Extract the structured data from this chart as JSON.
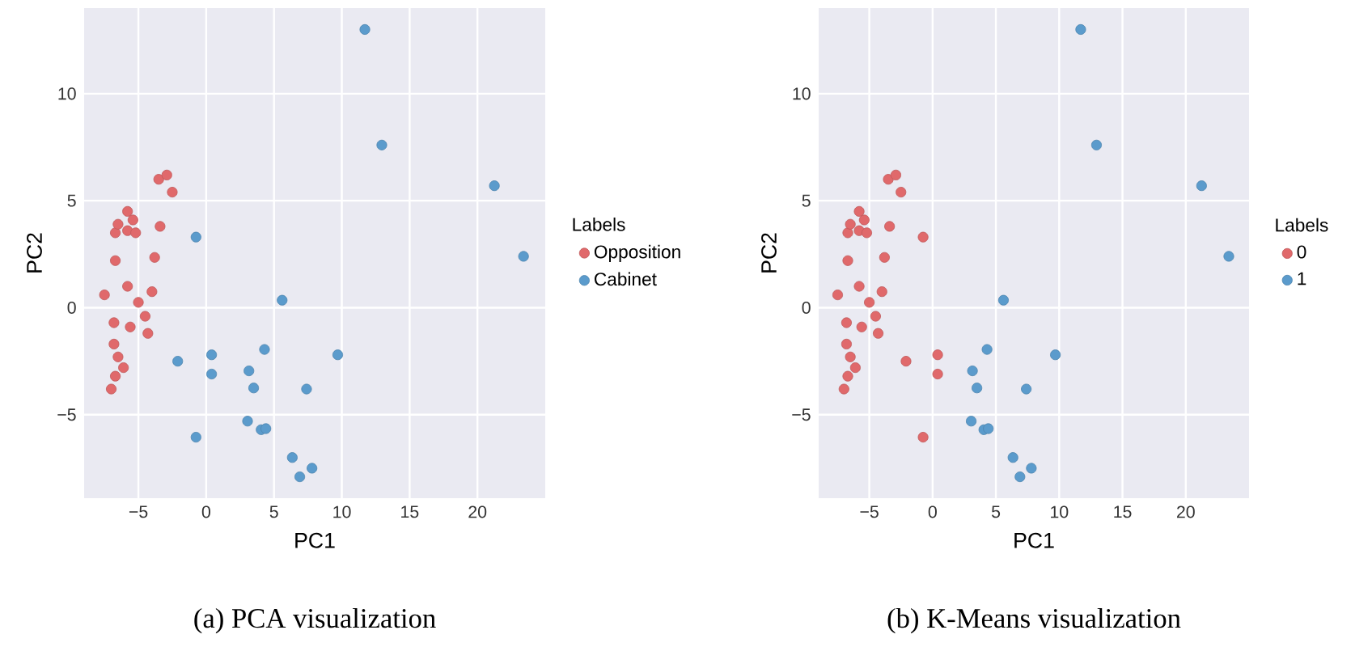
{
  "chart_data": [
    {
      "type": "scatter",
      "title": "(a) PCA visualization",
      "xlabel": "PC1",
      "ylabel": "PC2",
      "legend_title": "Labels",
      "legend": "right",
      "grid": true,
      "marker": "circle",
      "xlim": [
        -9,
        25
      ],
      "ylim": [
        -8.9,
        14
      ],
      "xticks": [
        {
          "value": -5,
          "label": "−5"
        },
        0,
        5,
        10,
        15,
        20
      ],
      "yticks": [
        {
          "value": -5,
          "label": "−5"
        },
        0,
        5,
        10
      ],
      "series": [
        {
          "name": "Opposition",
          "color": "#e0696b",
          "x": [
            -7.5,
            -7.0,
            -6.8,
            -6.8,
            -6.7,
            -6.7,
            -6.7,
            -6.5,
            -6.5,
            -6.1,
            -5.8,
            -5.8,
            -5.8,
            -5.6,
            -5.4,
            -5.2,
            -5.0,
            -4.5,
            -4.3,
            -4.0,
            -3.8,
            -3.5,
            -3.4,
            -2.9,
            -2.5
          ],
          "values": [
            0.6,
            -3.8,
            -1.7,
            -0.7,
            3.5,
            -3.2,
            2.2,
            -2.3,
            3.9,
            -2.8,
            4.5,
            1.0,
            3.6,
            -0.9,
            4.1,
            3.5,
            0.25,
            -0.4,
            -1.2,
            0.75,
            2.35,
            6.0,
            3.8,
            6.2,
            5.4
          ]
        },
        {
          "name": "Cabinet",
          "color": "#5b9bcc",
          "x": [
            -2.1,
            -0.75,
            -0.75,
            0.4,
            0.4,
            11.7,
            12.95,
            21.25,
            23.4,
            5.6,
            4.3,
            9.7,
            3.15,
            3.5,
            7.4,
            3.05,
            4.05,
            4.4,
            6.35,
            6.9,
            7.8
          ],
          "values": [
            -2.5,
            3.3,
            -6.05,
            -2.2,
            -3.1,
            13.0,
            7.6,
            5.7,
            2.4,
            0.35,
            -1.95,
            -2.2,
            -2.95,
            -3.75,
            -3.8,
            -5.3,
            -5.7,
            -5.65,
            -7.0,
            -7.9,
            -7.5
          ]
        }
      ]
    },
    {
      "type": "scatter",
      "title": "(b) K-Means visualization",
      "xlabel": "PC1",
      "ylabel": "PC2",
      "legend_title": "Labels",
      "legend": "right",
      "grid": true,
      "marker": "circle",
      "xlim": [
        -9,
        25
      ],
      "ylim": [
        -8.9,
        14
      ],
      "xticks": [
        {
          "value": -5,
          "label": "−5"
        },
        0,
        5,
        10,
        15,
        20
      ],
      "yticks": [
        {
          "value": -5,
          "label": "−5"
        },
        0,
        5,
        10
      ],
      "series": [
        {
          "name": "0",
          "color": "#e0696b",
          "x": [
            -7.5,
            -7.0,
            -6.8,
            -6.8,
            -6.7,
            -6.7,
            -6.7,
            -6.5,
            -6.5,
            -6.1,
            -5.8,
            -5.8,
            -5.8,
            -5.6,
            -5.4,
            -5.2,
            -5.0,
            -4.5,
            -4.3,
            -4.0,
            -3.8,
            -3.5,
            -3.4,
            -2.9,
            -2.5,
            -2.1,
            -0.75,
            -0.75,
            0.4,
            0.4
          ],
          "values": [
            0.6,
            -3.8,
            -1.7,
            -0.7,
            3.5,
            -3.2,
            2.2,
            -2.3,
            3.9,
            -2.8,
            4.5,
            1.0,
            3.6,
            -0.9,
            4.1,
            3.5,
            0.25,
            -0.4,
            -1.2,
            0.75,
            2.35,
            6.0,
            3.8,
            6.2,
            5.4,
            -2.5,
            3.3,
            -6.05,
            -2.2,
            -3.1
          ]
        },
        {
          "name": "1",
          "color": "#5b9bcc",
          "x": [
            11.7,
            12.95,
            21.25,
            23.4,
            5.6,
            4.3,
            9.7,
            3.15,
            3.5,
            7.4,
            3.05,
            4.05,
            4.4,
            6.35,
            6.9,
            7.8
          ],
          "values": [
            13.0,
            7.6,
            5.7,
            2.4,
            0.35,
            -1.95,
            -2.2,
            -2.95,
            -3.75,
            -3.8,
            -5.3,
            -5.7,
            -5.65,
            -7.0,
            -7.9,
            -7.5
          ]
        }
      ]
    }
  ]
}
